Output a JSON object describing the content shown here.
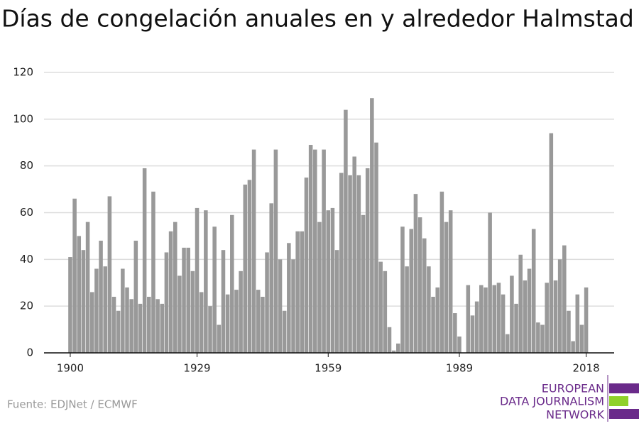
{
  "chart_data": {
    "type": "bar",
    "title": "Días de congelación anuales en y alrededor Halmstad",
    "source": "Fuente: EDJNet / ECMWF",
    "logo": [
      "EUROPEAN",
      "DATA JOURNALISM",
      "NETWORK"
    ],
    "color": "#999999",
    "x": [
      1900,
      1901,
      1902,
      1903,
      1904,
      1905,
      1906,
      1907,
      1908,
      1909,
      1910,
      1911,
      1912,
      1913,
      1914,
      1915,
      1916,
      1917,
      1918,
      1919,
      1920,
      1921,
      1922,
      1923,
      1924,
      1925,
      1926,
      1927,
      1928,
      1929,
      1930,
      1931,
      1932,
      1933,
      1934,
      1935,
      1936,
      1937,
      1938,
      1939,
      1940,
      1941,
      1942,
      1943,
      1944,
      1945,
      1946,
      1947,
      1948,
      1949,
      1950,
      1951,
      1952,
      1953,
      1954,
      1955,
      1956,
      1957,
      1958,
      1959,
      1960,
      1961,
      1962,
      1963,
      1964,
      1965,
      1966,
      1967,
      1968,
      1969,
      1970,
      1971,
      1972,
      1973,
      1974,
      1975,
      1976,
      1977,
      1978,
      1979,
      1980,
      1981,
      1982,
      1983,
      1984,
      1985,
      1986,
      1987,
      1988,
      1989,
      1990,
      1991,
      1992,
      1993,
      1994,
      1995,
      1996,
      1997,
      1998,
      1999,
      2000,
      2001,
      2002,
      2003,
      2004,
      2005,
      2006,
      2007,
      2008,
      2009,
      2010,
      2011,
      2012,
      2013,
      2014,
      2015,
      2016,
      2017,
      2018
    ],
    "values": [
      41,
      66,
      50,
      44,
      56,
      26,
      36,
      48,
      37,
      67,
      24,
      18,
      36,
      28,
      23,
      48,
      21,
      79,
      24,
      69,
      23,
      21,
      43,
      52,
      56,
      33,
      45,
      45,
      35,
      62,
      26,
      61,
      20,
      54,
      12,
      44,
      25,
      59,
      27,
      35,
      72,
      74,
      87,
      27,
      24,
      43,
      64,
      87,
      40,
      18,
      47,
      40,
      52,
      52,
      75,
      89,
      87,
      56,
      87,
      61,
      62,
      44,
      77,
      104,
      76,
      84,
      76,
      59,
      79,
      109,
      90,
      39,
      35,
      11,
      1,
      4,
      54,
      37,
      53,
      68,
      58,
      49,
      37,
      24,
      28,
      69,
      56,
      61,
      17,
      7,
      0,
      29,
      16,
      22,
      29,
      28,
      60,
      29,
      30,
      25,
      8,
      33,
      21,
      42,
      31,
      36,
      53,
      13,
      12,
      30,
      94,
      31,
      40,
      46,
      18,
      5,
      25,
      12,
      28
    ],
    "xlim": [
      1894,
      2024.4
    ],
    "xticks": [
      1900,
      1929,
      1959,
      1989,
      2018
    ],
    "ylim": [
      0,
      120
    ],
    "yticks": [
      0,
      20,
      40,
      60,
      80,
      100,
      120
    ],
    "grid": true
  }
}
